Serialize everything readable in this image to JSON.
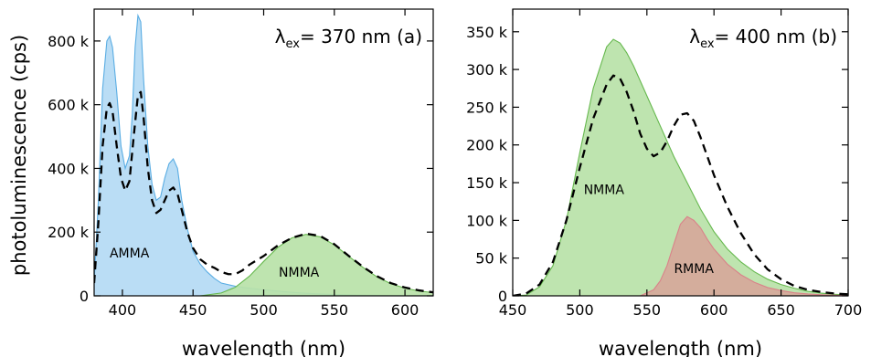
{
  "ylabel": "photoluminescence (cps)",
  "chart_data": [
    {
      "type": "area",
      "panel": "(a)",
      "annotation": {
        "lambda": "λ",
        "sub": "ex",
        "rest": "=  370 nm (a)"
      },
      "xlabel": "wavelength (nm)",
      "xlim": [
        380,
        620
      ],
      "ylim": [
        0,
        900000
      ],
      "xticks": [
        {
          "v": 400,
          "label": "400"
        },
        {
          "v": 450,
          "label": "450"
        },
        {
          "v": 500,
          "label": "500"
        },
        {
          "v": 550,
          "label": "550"
        },
        {
          "v": 600,
          "label": "600"
        }
      ],
      "yticks": [
        {
          "v": 0,
          "label": "0"
        },
        {
          "v": 200000,
          "label": "200 k"
        },
        {
          "v": 400000,
          "label": "400 k"
        },
        {
          "v": 600000,
          "label": "600 k"
        },
        {
          "v": 800000,
          "label": "800 k"
        }
      ],
      "series": [
        {
          "name": "AMMA",
          "style": "filled",
          "fill": "#b4daf4",
          "stroke": "#5aade3",
          "label_pos": [
            405,
            120000
          ],
          "x": [
            380,
            383,
            386,
            389,
            391,
            393,
            396,
            399,
            402,
            405,
            407,
            409,
            411,
            413,
            415,
            418,
            421,
            424,
            427,
            430,
            433,
            436,
            439,
            442,
            446,
            450,
            455,
            460,
            465,
            470,
            480,
            490,
            500,
            510,
            520,
            530,
            540,
            550,
            560,
            570,
            580,
            590,
            600,
            610,
            620
          ],
          "y": [
            40000,
            300000,
            650000,
            800000,
            815000,
            780000,
            640000,
            470000,
            400000,
            440000,
            570000,
            780000,
            880000,
            860000,
            680000,
            470000,
            350000,
            300000,
            310000,
            370000,
            415000,
            430000,
            400000,
            300000,
            210000,
            140000,
            100000,
            75000,
            55000,
            40000,
            30000,
            24000,
            19000,
            15000,
            11000,
            8000,
            6000,
            4000,
            3000,
            2000,
            1500,
            1000,
            600,
            300,
            100
          ]
        },
        {
          "name": "NMMA",
          "style": "filled",
          "fill": "#b8e2a8",
          "stroke": "#66b84e",
          "label_pos": [
            525,
            60000
          ],
          "x": [
            455,
            470,
            480,
            490,
            500,
            510,
            520,
            530,
            540,
            550,
            560,
            570,
            580,
            590,
            600,
            610,
            620
          ],
          "y": [
            0,
            9000,
            27000,
            62000,
            108000,
            152000,
            182000,
            193000,
            185000,
            160000,
            125000,
            90000,
            60000,
            38000,
            24000,
            15000,
            10000
          ]
        },
        {
          "name": "",
          "style": "dashed",
          "stroke": "#000000",
          "x": [
            380,
            383,
            386,
            389,
            391,
            393,
            396,
            399,
            402,
            405,
            408,
            411,
            413,
            415,
            418,
            421,
            424,
            427,
            430,
            433,
            436,
            439,
            442,
            446,
            450,
            455,
            460,
            465,
            470,
            475,
            480,
            485,
            490,
            500,
            510,
            520,
            530,
            540,
            550,
            560,
            570,
            580,
            590,
            600,
            610,
            620
          ],
          "y": [
            40000,
            230000,
            470000,
            590000,
            605000,
            580000,
            470000,
            370000,
            330000,
            360000,
            500000,
            630000,
            640000,
            560000,
            400000,
            300000,
            260000,
            270000,
            300000,
            330000,
            340000,
            320000,
            270000,
            200000,
            150000,
            115000,
            98000,
            88000,
            75000,
            68000,
            68000,
            80000,
            98000,
            125000,
            158000,
            182000,
            195000,
            188000,
            162000,
            126000,
            92000,
            62000,
            40000,
            26000,
            17000,
            11000
          ]
        }
      ]
    },
    {
      "type": "area",
      "panel": "(b)",
      "annotation": {
        "lambda": "λ",
        "sub": "ex",
        "rest": "=  400 nm (b)"
      },
      "xlabel": "wavelength (nm)",
      "xlim": [
        450,
        700
      ],
      "ylim": [
        0,
        380000
      ],
      "xticks": [
        {
          "v": 450,
          "label": "450"
        },
        {
          "v": 500,
          "label": "500"
        },
        {
          "v": 550,
          "label": "550"
        },
        {
          "v": 600,
          "label": "600"
        },
        {
          "v": 650,
          "label": "650"
        },
        {
          "v": 700,
          "label": "700"
        }
      ],
      "yticks": [
        {
          "v": 0,
          "label": "0"
        },
        {
          "v": 50000,
          "label": "50 k"
        },
        {
          "v": 100000,
          "label": "100 k"
        },
        {
          "v": 150000,
          "label": "150 k"
        },
        {
          "v": 200000,
          "label": "200 k"
        },
        {
          "v": 250000,
          "label": "250 k"
        },
        {
          "v": 300000,
          "label": "300 k"
        },
        {
          "v": 350000,
          "label": "350 k"
        }
      ],
      "series": [
        {
          "name": "NMMA",
          "style": "filled",
          "fill": "#b8e2a8",
          "stroke": "#66b84e",
          "label_pos": [
            518,
            135000
          ],
          "x": [
            450,
            460,
            470,
            480,
            490,
            500,
            510,
            520,
            525,
            530,
            535,
            540,
            550,
            560,
            570,
            580,
            590,
            600,
            610,
            620,
            630,
            640,
            650,
            660,
            670,
            680,
            690,
            700
          ],
          "y": [
            0,
            1000,
            12000,
            40000,
            100000,
            190000,
            275000,
            330000,
            340000,
            335000,
            322000,
            305000,
            265000,
            225000,
            185000,
            150000,
            115000,
            85000,
            62000,
            45000,
            32000,
            22000,
            15000,
            10000,
            6000,
            3500,
            2000,
            1000
          ]
        },
        {
          "name": "RMMA",
          "style": "filled",
          "fill": "#d6a89a",
          "stroke": "#d9838a",
          "label_pos": [
            585,
            30000
          ],
          "x": [
            545,
            555,
            560,
            565,
            570,
            575,
            580,
            585,
            590,
            595,
            600,
            610,
            620,
            630,
            640,
            650,
            660,
            670,
            680,
            690,
            700
          ],
          "y": [
            0,
            8000,
            20000,
            40000,
            68000,
            95000,
            105000,
            100000,
            90000,
            75000,
            62000,
            42000,
            28000,
            18000,
            11000,
            7000,
            4000,
            2500,
            1500,
            800,
            400
          ]
        },
        {
          "name": "",
          "style": "dashed",
          "stroke": "#000000",
          "x": [
            450,
            460,
            470,
            480,
            490,
            500,
            510,
            520,
            525,
            530,
            535,
            540,
            545,
            550,
            555,
            560,
            565,
            570,
            575,
            580,
            585,
            590,
            595,
            600,
            610,
            620,
            630,
            640,
            650,
            660,
            670,
            680,
            690,
            700
          ],
          "y": [
            0,
            3000,
            15000,
            45000,
            100000,
            170000,
            235000,
            280000,
            292000,
            288000,
            270000,
            245000,
            215000,
            195000,
            185000,
            190000,
            205000,
            225000,
            240000,
            242000,
            232000,
            210000,
            185000,
            160000,
            118000,
            83000,
            55000,
            35000,
            22000,
            13000,
            8000,
            5000,
            3000,
            2000
          ]
        }
      ]
    }
  ]
}
